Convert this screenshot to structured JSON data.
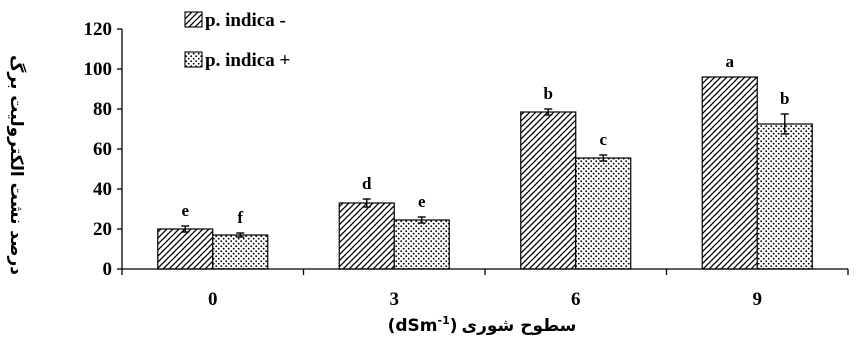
{
  "chart_data": {
    "type": "bar",
    "categories": [
      "0",
      "3",
      "6",
      "9"
    ],
    "series": [
      {
        "name": "p. indica -",
        "pattern": "diagonal-hatch",
        "values": [
          20,
          33,
          78.5,
          96
        ],
        "errors": [
          1.5,
          2,
          1.5,
          0
        ],
        "letters": [
          "e",
          "d",
          "b",
          "a"
        ]
      },
      {
        "name": "p. indica +",
        "pattern": "dots",
        "values": [
          17,
          24.5,
          55.5,
          72.5
        ],
        "errors": [
          1,
          1.5,
          1.5,
          5
        ],
        "letters": [
          "f",
          "e",
          "c",
          "b"
        ]
      }
    ],
    "ylim": [
      0,
      120
    ],
    "yticks": [
      0,
      20,
      40,
      60,
      80,
      100,
      120
    ],
    "ylabel": "درصد نشت الکترولیت برگ",
    "xlabel_text": "سطوح شوری",
    "xlabel_unit": "(dSm",
    "xlabel_sup": "-1",
    "xlabel_close": ")",
    "legend_position": "top-left",
    "grid": false
  }
}
